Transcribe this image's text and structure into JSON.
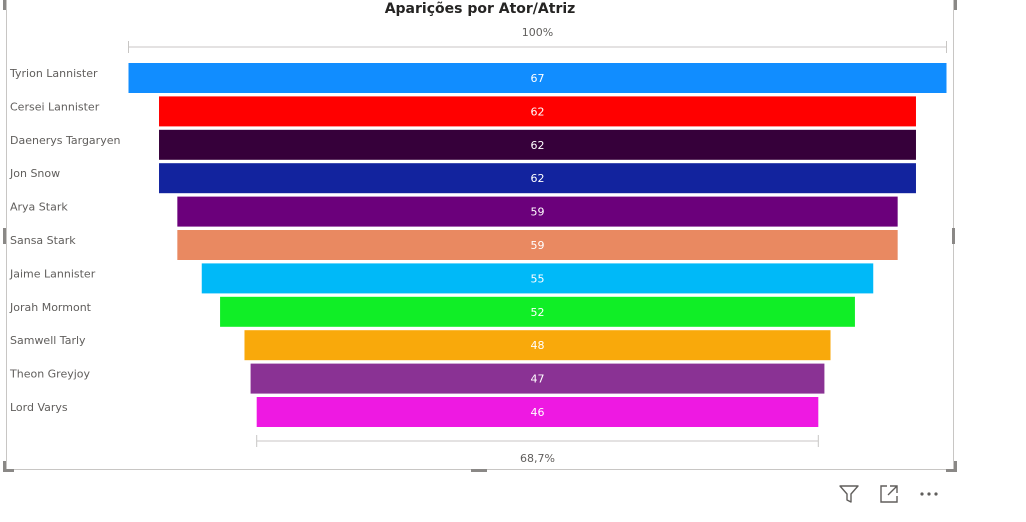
{
  "chart_data": {
    "type": "funnel",
    "title": "Aparições por Ator/Atriz",
    "top_percent_label": "100%",
    "bottom_percent_label": "68,7%",
    "categories": [
      "Tyrion Lannister",
      "Cersei Lannister",
      "Daenerys Targaryen",
      "Jon Snow",
      "Arya Stark",
      "Sansa Stark",
      "Jaime Lannister",
      "Jorah Mormont",
      "Samwell Tarly",
      "Theon Greyjoy",
      "Lord Varys"
    ],
    "values": [
      67,
      62,
      62,
      62,
      59,
      59,
      55,
      52,
      48,
      47,
      46
    ],
    "colors": [
      "#118DFF",
      "#FF0000",
      "#36003A",
      "#12239E",
      "#6B007B",
      "#E98961",
      "#00B9F8",
      "#10EE26",
      "#F9A90B",
      "#8A3294",
      "#EE19E2"
    ],
    "label_color": "#FFFFFF"
  },
  "toolbar": {
    "icons": [
      "filter-icon",
      "focus-mode-icon",
      "more-options-icon"
    ]
  }
}
